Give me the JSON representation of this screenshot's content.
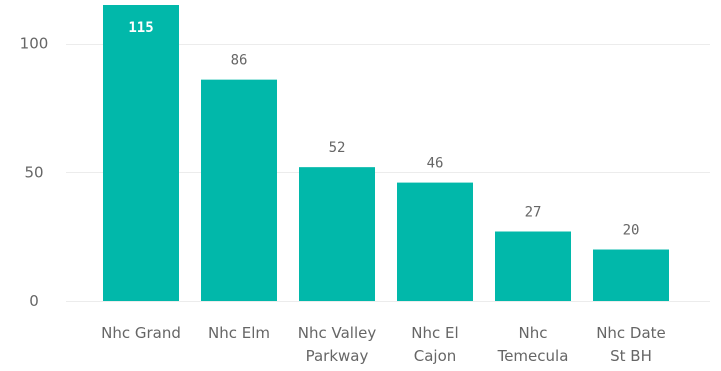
{
  "chart_data": {
    "type": "bar",
    "title": "",
    "xlabel": "",
    "ylabel": "",
    "categories": [
      "Nhc Grand",
      "Nhc Elm",
      "Nhc Valley Parkway",
      "Nhc El Cajon",
      "Nhc Temecula",
      "Nhc Date St BH"
    ],
    "category_lines": [
      [
        "Nhc Grand"
      ],
      [
        "Nhc Elm"
      ],
      [
        "Nhc Valley",
        "Parkway"
      ],
      [
        "Nhc El",
        "Cajon"
      ],
      [
        "Nhc",
        "Temecula"
      ],
      [
        "Nhc Date",
        "St BH"
      ]
    ],
    "values": [
      115,
      86,
      52,
      46,
      27,
      20
    ],
    "ylim": [
      0,
      115
    ],
    "yticks": [
      0,
      50,
      100
    ],
    "grid": true,
    "legend": "none",
    "bar_color": "#01b8aa",
    "grid_color": "#ececec",
    "label_color": "#666666"
  }
}
